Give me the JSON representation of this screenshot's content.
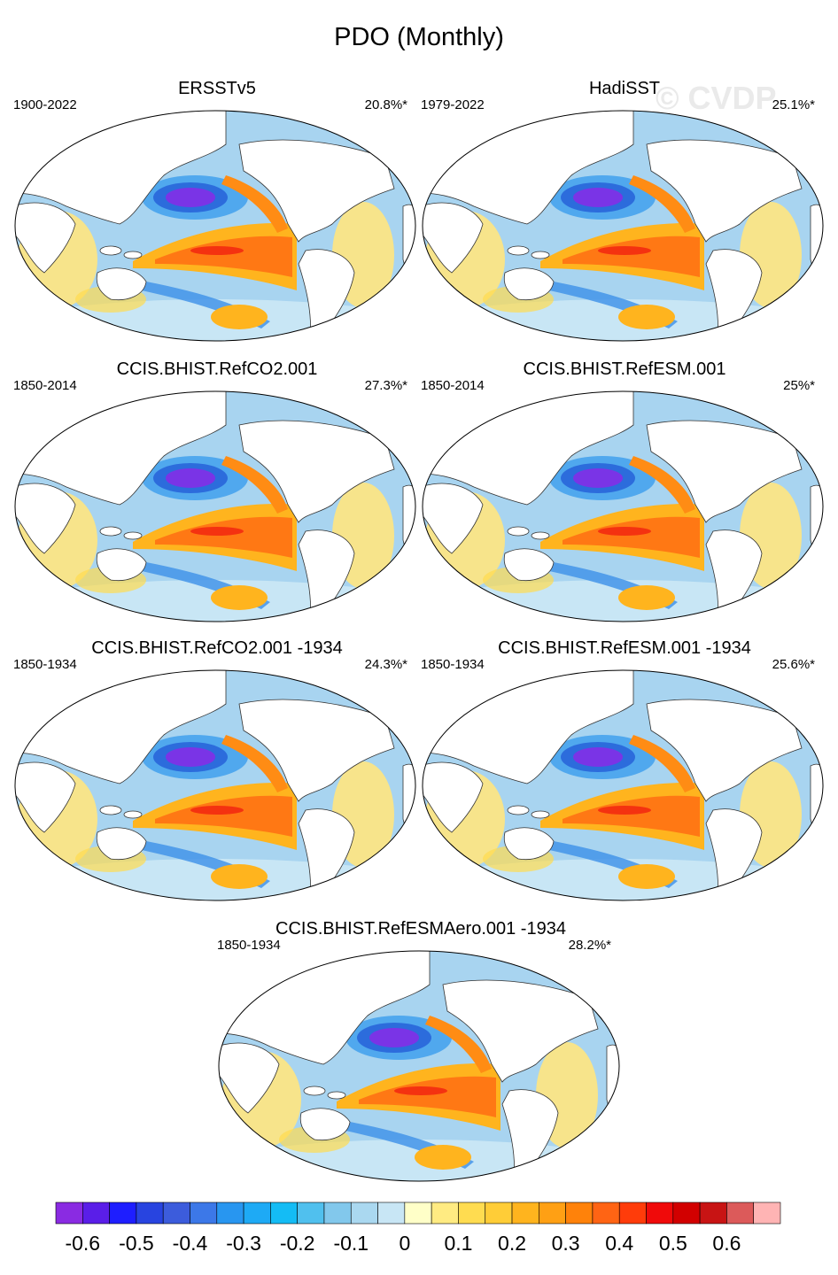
{
  "title": "PDO (Monthly)",
  "watermark": "© CVDP",
  "panels": [
    {
      "title": "ERSSTv5",
      "period": "1900-2022",
      "percent": "20.8%*"
    },
    {
      "title": "HadiSST",
      "period": "1979-2022",
      "percent": "25.1%*"
    },
    {
      "title": "CCIS.BHIST.RefCO2.001",
      "period": "1850-2014",
      "percent": "27.3%*"
    },
    {
      "title": "CCIS.BHIST.RefESM.001",
      "period": "1850-2014",
      "percent": "25%*"
    },
    {
      "title": "CCIS.BHIST.RefCO2.001 -1934",
      "period": "1850-1934",
      "percent": "24.3%*"
    },
    {
      "title": "CCIS.BHIST.RefESM.001 -1934",
      "period": "1850-1934",
      "percent": "25.6%*"
    },
    {
      "title": "CCIS.BHIST.RefESMAero.001 -1934",
      "period": "1850-1934",
      "percent": "28.2%*"
    }
  ],
  "colorbar": {
    "colors": [
      "#8a2be2",
      "#5a1ee8",
      "#1e1eff",
      "#2844e0",
      "#3c5cdc",
      "#3c78e8",
      "#2896f0",
      "#1eaaf5",
      "#14bcf5",
      "#50c0ee",
      "#82c8ec",
      "#aad8f0",
      "#c8e6f5",
      "#ffffc8",
      "#ffeb82",
      "#ffdc50",
      "#ffcd37",
      "#ffb41e",
      "#ffa014",
      "#ff820a",
      "#ff6414",
      "#ff3c0a",
      "#f00a0a",
      "#d20000",
      "#c81414",
      "#dc5a5a",
      "#ffb4b4"
    ],
    "labels": [
      "-0.6",
      "-0.5",
      "-0.4",
      "-0.3",
      "-0.2",
      "-0.1",
      "0",
      "0.1",
      "0.2",
      "0.3",
      "0.4",
      "0.5",
      "0.6"
    ]
  }
}
